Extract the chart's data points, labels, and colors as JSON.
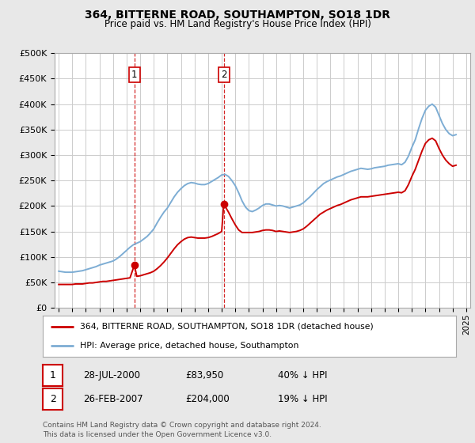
{
  "title": "364, BITTERNE ROAD, SOUTHAMPTON, SO18 1DR",
  "subtitle": "Price paid vs. HM Land Registry's House Price Index (HPI)",
  "ylim": [
    0,
    500000
  ],
  "yticks": [
    0,
    50000,
    100000,
    150000,
    200000,
    250000,
    300000,
    350000,
    400000,
    450000,
    500000
  ],
  "ytick_labels": [
    "£0",
    "£50K",
    "£100K",
    "£150K",
    "£200K",
    "£250K",
    "£300K",
    "£350K",
    "£400K",
    "£450K",
    "£500K"
  ],
  "background_color": "#e8e8e8",
  "plot_bg_color": "#ffffff",
  "grid_color": "#cccccc",
  "red_line_color": "#cc0000",
  "blue_line_color": "#7dadd4",
  "vline_color": "#cc0000",
  "sale1_x": 2000.57,
  "sale1_y": 83950,
  "sale1_label": "1",
  "sale2_x": 2007.15,
  "sale2_y": 204000,
  "sale2_label": "2",
  "legend_label_red": "364, BITTERNE ROAD, SOUTHAMPTON, SO18 1DR (detached house)",
  "legend_label_blue": "HPI: Average price, detached house, Southampton",
  "table_rows": [
    {
      "num": "1",
      "date": "28-JUL-2000",
      "price": "£83,950",
      "change": "40% ↓ HPI"
    },
    {
      "num": "2",
      "date": "26-FEB-2007",
      "price": "£204,000",
      "change": "19% ↓ HPI"
    }
  ],
  "footnote": "Contains HM Land Registry data © Crown copyright and database right 2024.\nThis data is licensed under the Open Government Licence v3.0.",
  "hpi_data": {
    "years": [
      1995.0,
      1995.25,
      1995.5,
      1995.75,
      1996.0,
      1996.25,
      1996.5,
      1996.75,
      1997.0,
      1997.25,
      1997.5,
      1997.75,
      1998.0,
      1998.25,
      1998.5,
      1998.75,
      1999.0,
      1999.25,
      1999.5,
      1999.75,
      2000.0,
      2000.25,
      2000.5,
      2000.75,
      2001.0,
      2001.25,
      2001.5,
      2001.75,
      2002.0,
      2002.25,
      2002.5,
      2002.75,
      2003.0,
      2003.25,
      2003.5,
      2003.75,
      2004.0,
      2004.25,
      2004.5,
      2004.75,
      2005.0,
      2005.25,
      2005.5,
      2005.75,
      2006.0,
      2006.25,
      2006.5,
      2006.75,
      2007.0,
      2007.25,
      2007.5,
      2007.75,
      2008.0,
      2008.25,
      2008.5,
      2008.75,
      2009.0,
      2009.25,
      2009.5,
      2009.75,
      2010.0,
      2010.25,
      2010.5,
      2010.75,
      2011.0,
      2011.25,
      2011.5,
      2011.75,
      2012.0,
      2012.25,
      2012.5,
      2012.75,
      2013.0,
      2013.25,
      2013.5,
      2013.75,
      2014.0,
      2014.25,
      2014.5,
      2014.75,
      2015.0,
      2015.25,
      2015.5,
      2015.75,
      2016.0,
      2016.25,
      2016.5,
      2016.75,
      2017.0,
      2017.25,
      2017.5,
      2017.75,
      2018.0,
      2018.25,
      2018.5,
      2018.75,
      2019.0,
      2019.25,
      2019.5,
      2019.75,
      2020.0,
      2020.25,
      2020.5,
      2020.75,
      2021.0,
      2021.25,
      2021.5,
      2021.75,
      2022.0,
      2022.25,
      2022.5,
      2022.75,
      2023.0,
      2023.25,
      2023.5,
      2023.75,
      2024.0,
      2024.25
    ],
    "values": [
      72000,
      71000,
      70000,
      70000,
      70000,
      71000,
      72000,
      73000,
      75000,
      77000,
      79000,
      81000,
      84000,
      86000,
      88000,
      90000,
      92000,
      96000,
      101000,
      107000,
      113000,
      119000,
      124000,
      127000,
      130000,
      135000,
      140000,
      147000,
      155000,
      167000,
      178000,
      188000,
      196000,
      207000,
      218000,
      227000,
      234000,
      240000,
      244000,
      246000,
      245000,
      243000,
      242000,
      242000,
      244000,
      248000,
      252000,
      256000,
      261000,
      262000,
      258000,
      250000,
      240000,
      226000,
      210000,
      198000,
      191000,
      189000,
      192000,
      196000,
      201000,
      204000,
      204000,
      202000,
      200000,
      201000,
      200000,
      198000,
      196000,
      198000,
      200000,
      202000,
      206000,
      212000,
      218000,
      225000,
      232000,
      238000,
      244000,
      248000,
      251000,
      254000,
      257000,
      259000,
      262000,
      265000,
      268000,
      270000,
      272000,
      274000,
      273000,
      272000,
      273000,
      275000,
      276000,
      277000,
      278000,
      280000,
      281000,
      282000,
      283000,
      281000,
      286000,
      298000,
      315000,
      330000,
      352000,
      372000,
      388000,
      396000,
      400000,
      394000,
      378000,
      362000,
      350000,
      342000,
      338000,
      340000
    ]
  },
  "red_data": {
    "years": [
      1995.0,
      1995.25,
      1995.5,
      1995.75,
      1996.0,
      1996.25,
      1996.5,
      1996.75,
      1997.0,
      1997.25,
      1997.5,
      1997.75,
      1998.0,
      1998.25,
      1998.5,
      1998.75,
      1999.0,
      1999.25,
      1999.5,
      1999.75,
      2000.0,
      2000.25,
      2000.57,
      2000.75,
      2001.0,
      2001.25,
      2001.5,
      2001.75,
      2002.0,
      2002.25,
      2002.5,
      2002.75,
      2003.0,
      2003.25,
      2003.5,
      2003.75,
      2004.0,
      2004.25,
      2004.5,
      2004.75,
      2005.0,
      2005.25,
      2005.5,
      2005.75,
      2006.0,
      2006.25,
      2006.5,
      2006.75,
      2007.0,
      2007.15,
      2007.5,
      2007.75,
      2008.0,
      2008.25,
      2008.5,
      2008.75,
      2009.0,
      2009.25,
      2009.5,
      2009.75,
      2010.0,
      2010.25,
      2010.5,
      2010.75,
      2011.0,
      2011.25,
      2011.5,
      2011.75,
      2012.0,
      2012.25,
      2012.5,
      2012.75,
      2013.0,
      2013.25,
      2013.5,
      2013.75,
      2014.0,
      2014.25,
      2014.5,
      2014.75,
      2015.0,
      2015.25,
      2015.5,
      2015.75,
      2016.0,
      2016.25,
      2016.5,
      2016.75,
      2017.0,
      2017.25,
      2017.5,
      2017.75,
      2018.0,
      2018.25,
      2018.5,
      2018.75,
      2019.0,
      2019.25,
      2019.5,
      2019.75,
      2020.0,
      2020.25,
      2020.5,
      2020.75,
      2021.0,
      2021.25,
      2021.5,
      2021.75,
      2022.0,
      2022.25,
      2022.5,
      2022.75,
      2023.0,
      2023.25,
      2023.5,
      2023.75,
      2024.0,
      2024.25
    ],
    "values": [
      46000,
      46000,
      46000,
      46000,
      46000,
      47000,
      47000,
      47000,
      48000,
      49000,
      49000,
      50000,
      51000,
      52000,
      52000,
      53000,
      54000,
      55000,
      56000,
      57000,
      58000,
      59000,
      83950,
      62000,
      63000,
      65000,
      67000,
      69000,
      72000,
      77000,
      83000,
      90000,
      98000,
      107000,
      116000,
      124000,
      130000,
      135000,
      138000,
      139000,
      138000,
      137000,
      137000,
      137000,
      138000,
      140000,
      143000,
      146000,
      150000,
      204000,
      188000,
      175000,
      163000,
      153000,
      148000,
      148000,
      148000,
      148000,
      149000,
      150000,
      152000,
      153000,
      153000,
      152000,
      150000,
      151000,
      150000,
      149000,
      148000,
      149000,
      150000,
      152000,
      155000,
      160000,
      166000,
      172000,
      178000,
      184000,
      188000,
      192000,
      195000,
      198000,
      201000,
      203000,
      206000,
      209000,
      212000,
      214000,
      216000,
      218000,
      218000,
      218000,
      219000,
      220000,
      221000,
      222000,
      223000,
      224000,
      225000,
      226000,
      227000,
      226000,
      230000,
      242000,
      258000,
      272000,
      290000,
      308000,
      323000,
      330000,
      333000,
      328000,
      313000,
      300000,
      290000,
      283000,
      278000,
      280000
    ]
  },
  "xticks": [
    1995,
    1996,
    1997,
    1998,
    1999,
    2000,
    2001,
    2002,
    2003,
    2004,
    2005,
    2006,
    2007,
    2008,
    2009,
    2010,
    2011,
    2012,
    2013,
    2014,
    2015,
    2016,
    2017,
    2018,
    2019,
    2020,
    2021,
    2022,
    2023,
    2024,
    2025
  ],
  "xlim": [
    1994.7,
    2025.3
  ]
}
